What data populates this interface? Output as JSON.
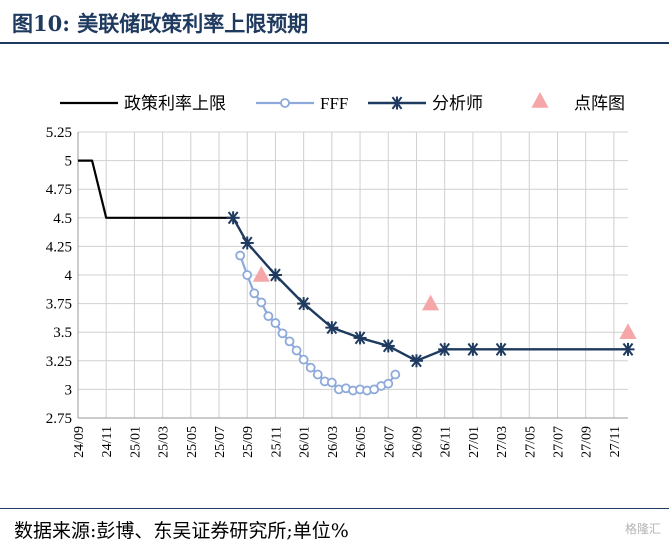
{
  "header": {
    "title": "图10:  美联储政策利率上限预期"
  },
  "footer": {
    "source": "数据来源:彭博、东吴证券研究所;单位%",
    "watermark": "格隆汇"
  },
  "colors": {
    "policy": "#000000",
    "fff": "#8eaadb",
    "analyst": "#1f3a5f",
    "dot": "#f4a6a8",
    "grid": "#d0d0d0",
    "title": "#1f3a5f"
  },
  "chart_data": {
    "type": "line",
    "title": "",
    "xlabel": "",
    "ylabel": "",
    "ylim": [
      2.75,
      5.25
    ],
    "yticks": [
      "5.25",
      "5",
      "4.75",
      "4.5",
      "4.25",
      "4",
      "3.75",
      "3.5",
      "3.25",
      "3",
      "2.75"
    ],
    "months": [
      "24/09",
      "24/10",
      "24/11",
      "24/12",
      "25/01",
      "25/02",
      "25/03",
      "25/04",
      "25/05",
      "25/06",
      "25/07",
      "25/08",
      "25/09",
      "25/10",
      "25/11",
      "25/12",
      "26/01",
      "26/02",
      "26/03",
      "26/04",
      "26/05",
      "26/06",
      "26/07",
      "26/08",
      "26/09",
      "26/10",
      "26/11",
      "26/12",
      "27/01",
      "27/02",
      "27/03",
      "27/04",
      "27/05",
      "27/06",
      "27/07",
      "27/08",
      "27/09",
      "27/10",
      "27/11",
      "27/12"
    ],
    "xticklabels": [
      "24/09",
      "24/11",
      "25/01",
      "25/03",
      "25/05",
      "25/07",
      "25/09",
      "25/11",
      "26/01",
      "26/03",
      "26/05",
      "26/07",
      "26/09",
      "26/11",
      "27/01",
      "27/03",
      "27/05",
      "27/07",
      "27/09",
      "27/11"
    ],
    "grid": true,
    "legend_position": "top",
    "series": [
      {
        "key": "policy",
        "name": "政策利率上限",
        "marker": "none",
        "points": [
          [
            "24/09",
            5.0
          ],
          [
            "24/10",
            5.0
          ],
          [
            "24/11",
            4.5
          ],
          [
            "24/12",
            4.5
          ],
          [
            "25/01",
            4.5
          ],
          [
            "25/02",
            4.5
          ],
          [
            "25/03",
            4.5
          ],
          [
            "25/04",
            4.5
          ],
          [
            "25/05",
            4.5
          ],
          [
            "25/06",
            4.5
          ],
          [
            "25/07",
            4.5
          ],
          [
            "25/08",
            4.5
          ]
        ]
      },
      {
        "key": "fff",
        "name": "FFF",
        "marker": "circle",
        "points": [
          [
            "25/08.5",
            4.17
          ],
          [
            "25/09",
            4.0
          ],
          [
            "25/09.5",
            3.84
          ],
          [
            "25/10",
            3.76
          ],
          [
            "25/10.5",
            3.64
          ],
          [
            "25/11",
            3.58
          ],
          [
            "25/11.5",
            3.49
          ],
          [
            "25/12",
            3.42
          ],
          [
            "25/12.5",
            3.34
          ],
          [
            "26/01",
            3.26
          ],
          [
            "26/01.5",
            3.19
          ],
          [
            "26/02",
            3.13
          ],
          [
            "26/02.5",
            3.07
          ],
          [
            "26/03",
            3.06
          ],
          [
            "26/03.5",
            3.0
          ],
          [
            "26/04",
            3.01
          ],
          [
            "26/04.5",
            2.99
          ],
          [
            "26/05",
            3.0
          ],
          [
            "26/05.5",
            2.99
          ],
          [
            "26/06",
            3.0
          ],
          [
            "26/06.5",
            3.03
          ],
          [
            "26/07",
            3.05
          ],
          [
            "26/07.5",
            3.13
          ]
        ]
      },
      {
        "key": "analyst",
        "name": "分析师",
        "marker": "asterisk",
        "points": [
          [
            "25/08",
            4.5
          ],
          [
            "25/09",
            4.28
          ],
          [
            "25/11",
            4.0
          ],
          [
            "26/01",
            3.75
          ],
          [
            "26/03",
            3.54
          ],
          [
            "26/05",
            3.45
          ],
          [
            "26/07",
            3.38
          ],
          [
            "26/09",
            3.25
          ],
          [
            "26/11",
            3.35
          ],
          [
            "27/01",
            3.35
          ],
          [
            "27/03",
            3.35
          ]
        ]
      },
      {
        "key": "dot",
        "name": "点阵图",
        "marker": "triangle",
        "points": [
          [
            "25/10",
            4.0
          ],
          [
            "26/10",
            3.75
          ],
          [
            "27/12",
            3.5
          ]
        ]
      }
    ]
  }
}
